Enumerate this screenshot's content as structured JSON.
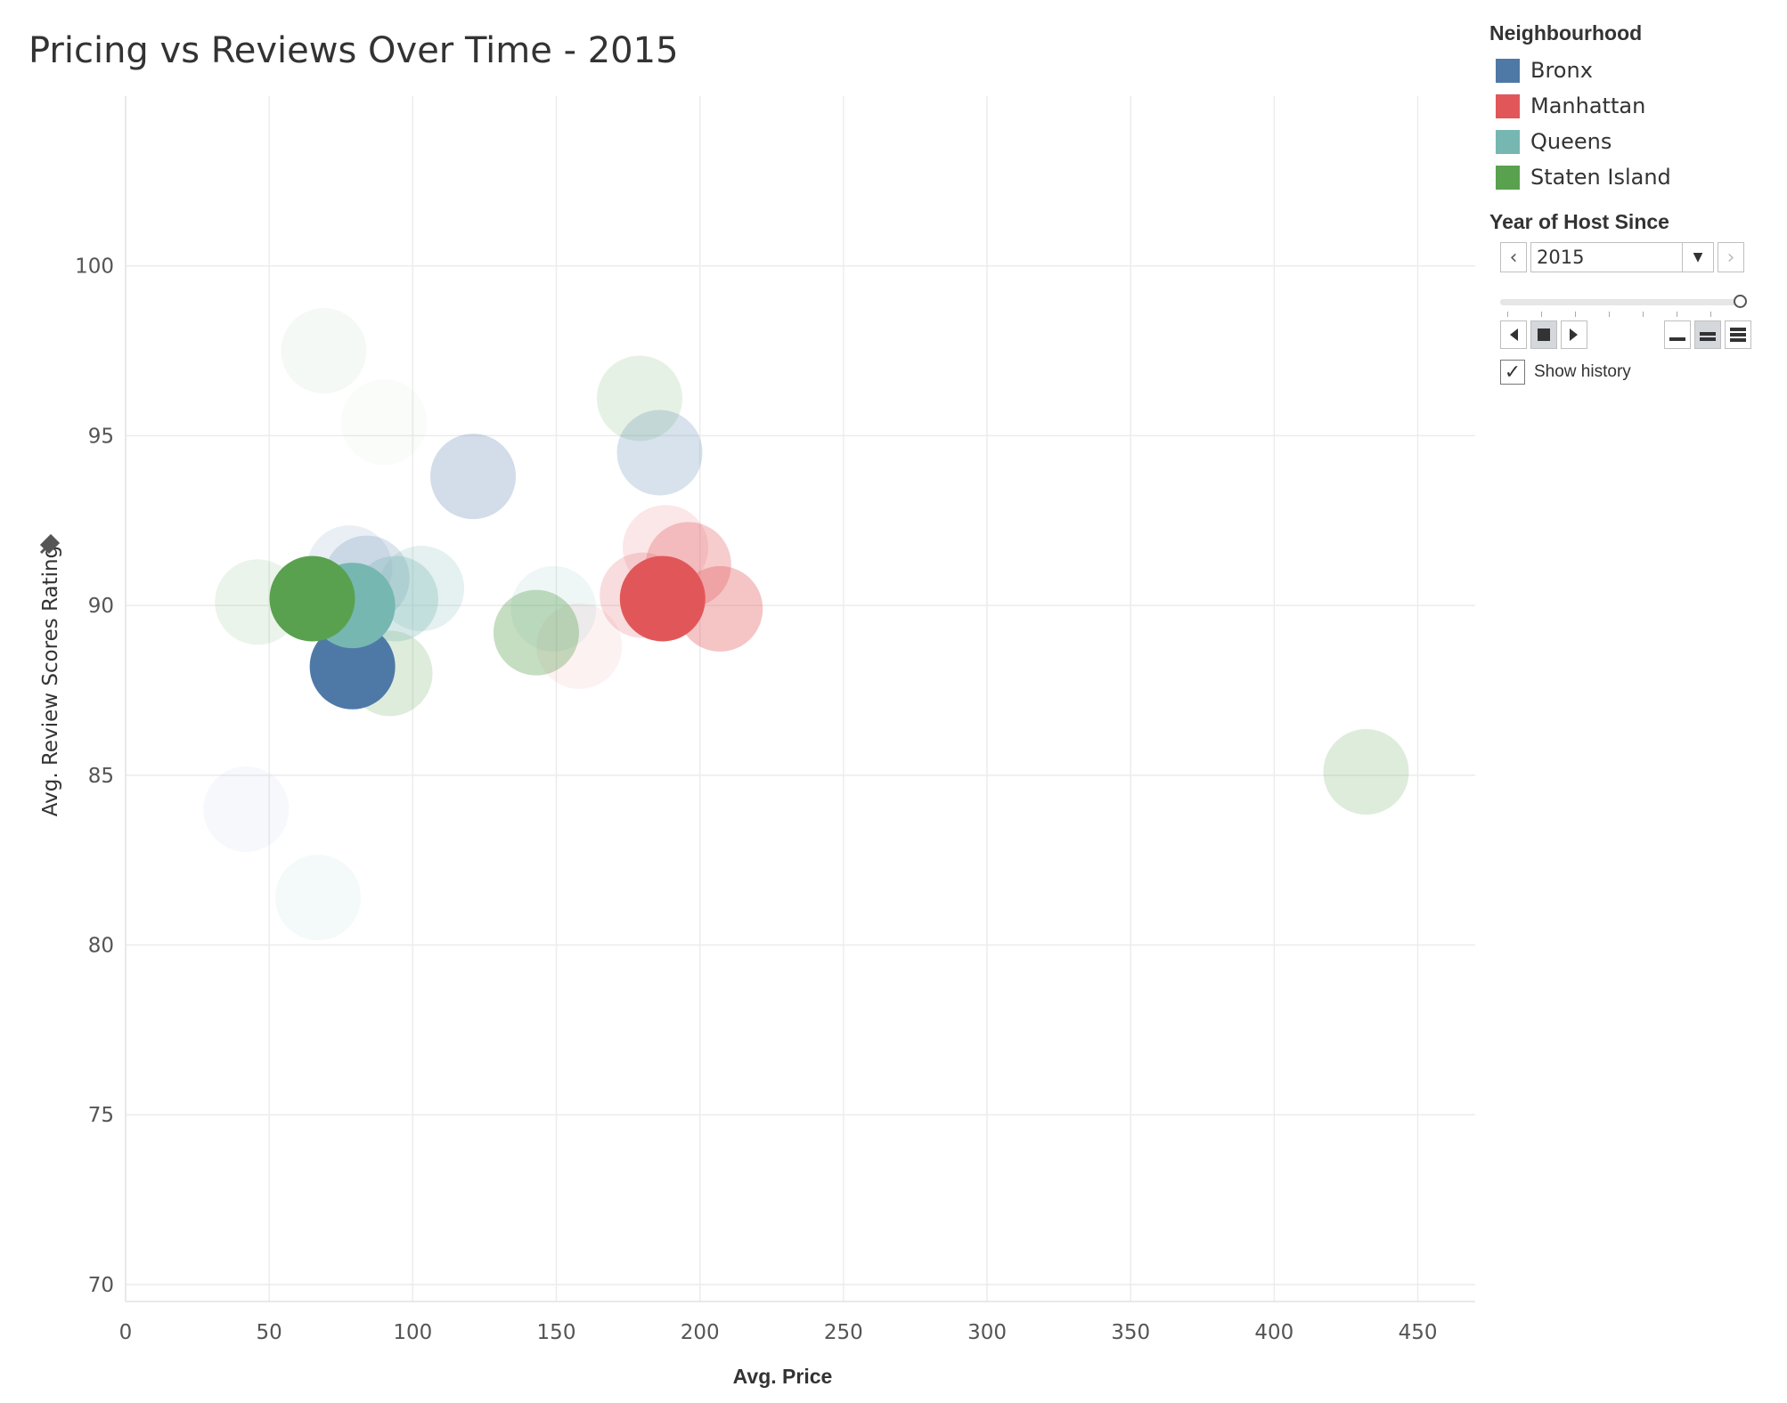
{
  "page": {
    "title": "Pricing vs Reviews Over Time - 2015"
  },
  "legend": {
    "title": "Neighbourhood",
    "items": [
      {
        "label": "Bronx",
        "color": "#4e79a7"
      },
      {
        "label": "Manhattan",
        "color": "#e15759"
      },
      {
        "label": "Queens",
        "color": "#76b7b2"
      },
      {
        "label": "Staten Island",
        "color": "#59a14f"
      }
    ]
  },
  "filter": {
    "title": "Year of Host Since",
    "selected_year": "2015",
    "prev_icon": "chevron-left-icon",
    "next_icon": "chevron-right-icon",
    "dropdown_icon": "caret-down-icon",
    "slider_value_fraction": 1.0,
    "playback": {
      "back_icon": "step-back-icon",
      "stop_icon": "stop-icon",
      "forward_icon": "step-forward-icon"
    },
    "speed_icons": [
      "speed-slow-icon",
      "speed-medium-icon",
      "speed-fast-icon"
    ],
    "selected_speed": "medium",
    "show_history_label": "Show history",
    "show_history_checked": true,
    "checkmark": "✓"
  },
  "chart_data": {
    "type": "scatter",
    "title": "Pricing vs Reviews Over Time - 2015",
    "xlabel": "Avg. Price",
    "ylabel": "Avg. Review Scores Rating",
    "xlim": [
      0,
      470
    ],
    "ylim": [
      69.5,
      105
    ],
    "xticks": [
      "0",
      "50",
      "100",
      "150",
      "200",
      "250",
      "300",
      "350",
      "400",
      "450"
    ],
    "yticks": [
      "70",
      "75",
      "80",
      "85",
      "90",
      "95",
      "100"
    ],
    "grid": true,
    "legend_position": "top-right",
    "series": [
      {
        "name": "Bronx",
        "color": "#4e79a7",
        "points": [
          {
            "x": 42,
            "y": 84.0,
            "opacity": 0.05
          },
          {
            "x": 78,
            "y": 91.1,
            "opacity": 0.12
          },
          {
            "x": 84,
            "y": 90.8,
            "opacity": 0.2
          },
          {
            "x": 121,
            "y": 93.8,
            "opacity": 0.25
          },
          {
            "x": 186,
            "y": 94.5,
            "opacity": 0.22
          },
          {
            "x": 79,
            "y": 88.2,
            "opacity": 1.0
          }
        ]
      },
      {
        "name": "Manhattan",
        "color": "#e15759",
        "points": [
          {
            "x": 158,
            "y": 88.8,
            "opacity": 0.08
          },
          {
            "x": 188,
            "y": 91.7,
            "opacity": 0.14
          },
          {
            "x": 180,
            "y": 90.3,
            "opacity": 0.2
          },
          {
            "x": 196,
            "y": 91.2,
            "opacity": 0.3
          },
          {
            "x": 207,
            "y": 89.9,
            "opacity": 0.35
          },
          {
            "x": 187,
            "y": 90.2,
            "opacity": 1.0
          }
        ]
      },
      {
        "name": "Queens",
        "color": "#76b7b2",
        "points": [
          {
            "x": 67,
            "y": 81.4,
            "opacity": 0.08
          },
          {
            "x": 149,
            "y": 89.9,
            "opacity": 0.12
          },
          {
            "x": 103,
            "y": 90.5,
            "opacity": 0.2
          },
          {
            "x": 94,
            "y": 90.2,
            "opacity": 0.3
          },
          {
            "x": 79,
            "y": 90.0,
            "opacity": 1.0
          }
        ]
      },
      {
        "name": "Staten Island",
        "color": "#59a14f",
        "points": [
          {
            "x": 69,
            "y": 97.5,
            "opacity": 0.06
          },
          {
            "x": 90,
            "y": 95.4,
            "opacity": 0.03
          },
          {
            "x": 179,
            "y": 96.1,
            "opacity": 0.15
          },
          {
            "x": 46,
            "y": 90.1,
            "opacity": 0.12
          },
          {
            "x": 92,
            "y": 88.0,
            "opacity": 0.2
          },
          {
            "x": 143,
            "y": 89.2,
            "opacity": 0.35
          },
          {
            "x": 432,
            "y": 85.1,
            "opacity": 0.2
          },
          {
            "x": 65,
            "y": 90.2,
            "opacity": 1.0
          }
        ]
      }
    ]
  }
}
